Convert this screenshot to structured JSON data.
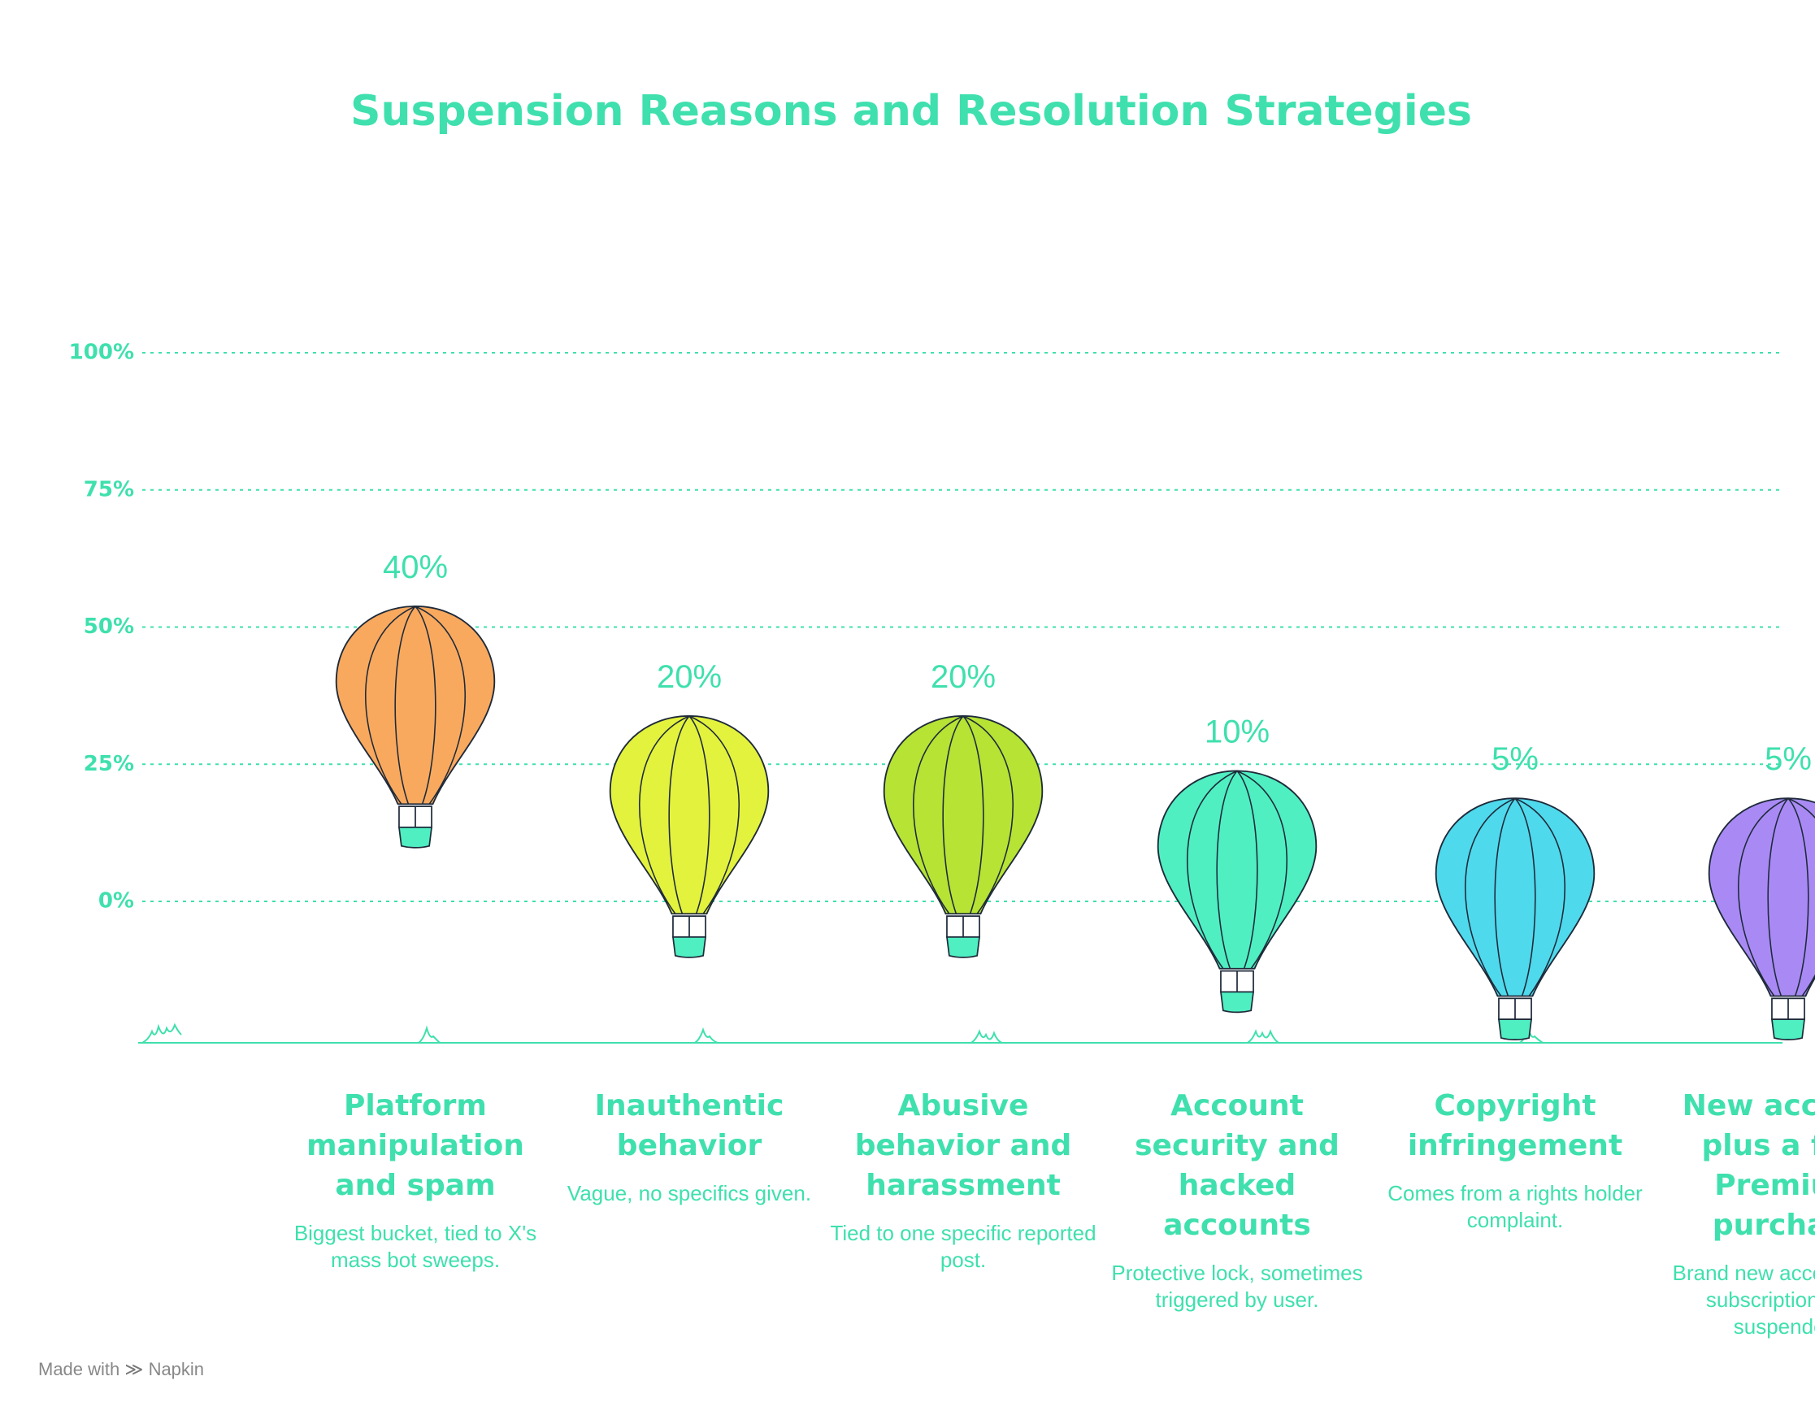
{
  "chart_data": {
    "type": "balloon",
    "title": "Suspension Reasons and Resolution Strategies",
    "categories": [
      "Platform manipulation and spam",
      "Inauthentic behavior",
      "Abusive behavior and harassment",
      "Account security and hacked accounts",
      "Copyright infringement",
      "New account plus a fast Premium purchase"
    ],
    "descriptions": [
      "Biggest bucket, tied to X's mass bot sweeps.",
      "Vague, no specifics given.",
      "Tied to one specific reported post.",
      "Protective lock, sometimes triggered by user.",
      "Comes from a rights holder complaint.",
      "Brand new account buys subscription, gets suspended."
    ],
    "values": [
      40,
      20,
      20,
      10,
      5,
      5
    ],
    "value_labels": [
      "40%",
      "20%",
      "20%",
      "10%",
      "5%",
      "5%"
    ],
    "colors": [
      "#f9a95e",
      "#e3f23d",
      "#b6e334",
      "#4fefc1",
      "#4fd9ec",
      "#a98af5"
    ],
    "ylim": [
      0,
      100
    ],
    "yticks": [
      {
        "value": 0,
        "label": "0%"
      },
      {
        "value": 25,
        "label": "25%"
      },
      {
        "value": 50,
        "label": "50%"
      },
      {
        "value": 75,
        "label": "75%"
      },
      {
        "value": 100,
        "label": "100%"
      }
    ],
    "grid": true,
    "footer": "Made with",
    "brand": "Napkin"
  }
}
